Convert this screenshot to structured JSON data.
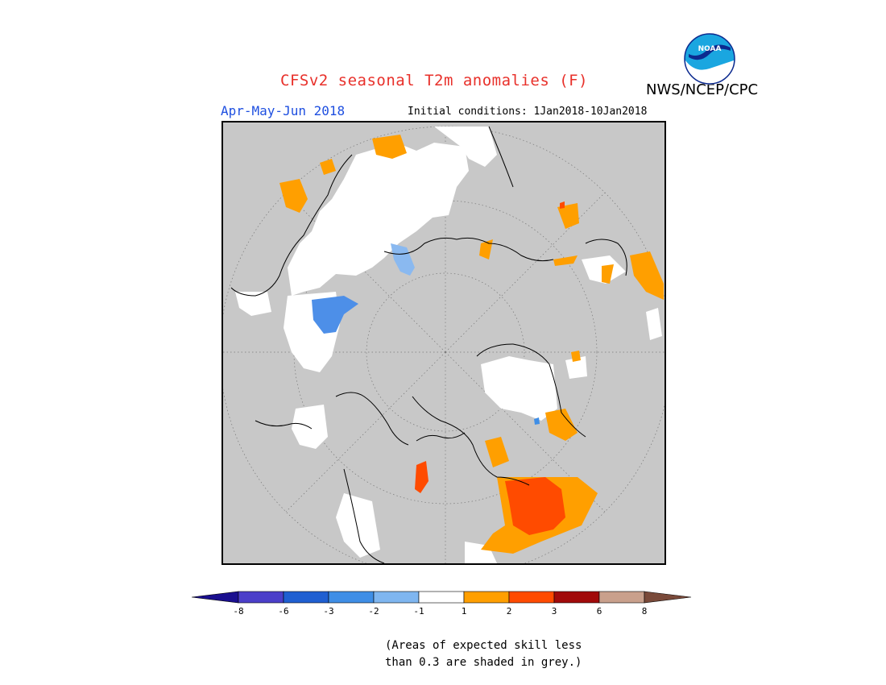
{
  "title": "CFSv2 seasonal T2m anomalies (F)",
  "agency": "NWS/NCEP/CPC",
  "logo_text": "NOAA",
  "season": "Apr-May-Jun 2018",
  "initial_conditions": "Initial conditions: 1Jan2018-10Jan2018",
  "map": {
    "projection": "north-polar-stereographic",
    "background_color": "#c8c8c8",
    "grey_meaning": "skill < 0.3"
  },
  "colorbar": {
    "colors": [
      "#1a0f8f",
      "#4b3fc9",
      "#1f5fd1",
      "#3f8ee6",
      "#7fb6f0",
      "#ffffff",
      "#ff9f00",
      "#ff4b00",
      "#a10a0a",
      "#c9a08c",
      "#7a4a3a"
    ],
    "tick_labels": [
      "-8",
      "-6",
      "-3",
      "-2",
      "-1",
      "1",
      "2",
      "3",
      "6",
      "8"
    ]
  },
  "note_line1": "(Areas of expected skill less",
  "note_line2": "than 0.3 are shaded in grey.)"
}
